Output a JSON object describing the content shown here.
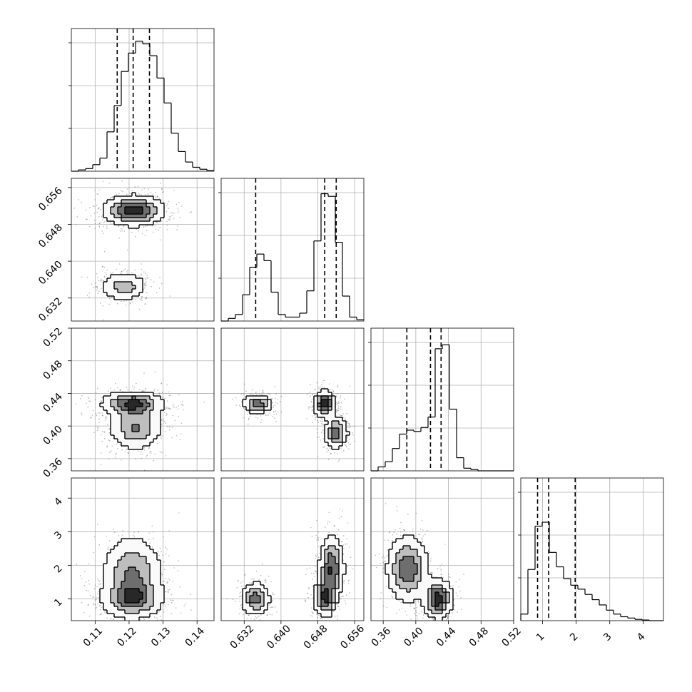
{
  "chart_data": {
    "type": "corner",
    "grid": true,
    "params": [
      {
        "range": [
          0.103,
          0.145
        ],
        "ticks": [
          "0.11",
          "0.12",
          "0.13",
          "0.14"
        ],
        "tick_values": [
          0.11,
          0.12,
          0.13,
          0.14
        ],
        "quantiles": [
          0.1165,
          0.1212,
          0.126
        ],
        "modes": [
          {
            "mu": 0.1215,
            "sigma": 0.0045,
            "w": 1
          }
        ],
        "histogram": [
          0,
          0.01,
          0.02,
          0.05,
          0.1,
          0.3,
          0.5,
          0.76,
          0.9,
          0.99,
          0.97,
          0.88,
          0.71,
          0.52,
          0.29,
          0.15,
          0.07,
          0.03,
          0.015,
          0.005
        ]
      },
      {
        "range": [
          0.627,
          0.658
        ],
        "ticks": [
          "0.632",
          "0.640",
          "0.648",
          "0.656"
        ],
        "tick_values": [
          0.632,
          0.64,
          0.648,
          0.656
        ],
        "quantiles": [
          0.6345,
          0.6495,
          0.652
        ],
        "modes": [
          {
            "mu": 0.6345,
            "sigma": 0.0016,
            "w": 0.33
          },
          {
            "mu": 0.651,
            "sigma": 0.0017,
            "w": 0.67
          }
        ],
        "histogram": [
          0,
          0.02,
          0.05,
          0.2,
          0.41,
          0.51,
          0.46,
          0.22,
          0.05,
          0.03,
          0.03,
          0.06,
          0.23,
          0.61,
          0.97,
          0.95,
          0.6,
          0.19,
          0.03,
          0.01
        ]
      },
      {
        "range": [
          0.345,
          0.52
        ],
        "ticks": [
          "0.36",
          "0.40",
          "0.44",
          "0.48",
          "0.52"
        ],
        "tick_values": [
          0.36,
          0.4,
          0.44,
          0.48,
          0.52
        ],
        "quantiles": [
          0.389,
          0.418,
          0.431
        ],
        "modes": [
          {
            "mu": 0.427,
            "sigma": 0.008,
            "w": 0.6
          },
          {
            "mu": 0.395,
            "sigma": 0.015,
            "w": 0.4
          }
        ],
        "histogram": [
          0,
          0.03,
          0.07,
          0.17,
          0.28,
          0.31,
          0.3,
          0.33,
          0.41,
          0.93,
          0.96,
          0.47,
          0.1,
          0.02,
          0.01,
          0,
          0,
          0,
          0,
          0
        ]
      },
      {
        "range": [
          0.35,
          4.6
        ],
        "ticks": [
          "1",
          "2",
          "3",
          "4"
        ],
        "tick_values": [
          1,
          2,
          3,
          4
        ],
        "quantiles": [
          0.85,
          1.18,
          1.97
        ],
        "modes": [
          {
            "mu": 1.0,
            "sigma": 0.25,
            "w": 0.55
          },
          {
            "mu": 1.8,
            "sigma": 0.55,
            "w": 0.45
          }
        ],
        "histogram": [
          0.05,
          0.39,
          0.72,
          0.75,
          0.52,
          0.41,
          0.32,
          0.27,
          0.24,
          0.2,
          0.16,
          0.12,
          0.08,
          0.05,
          0.03,
          0.02,
          0.01,
          0.005,
          0,
          0
        ]
      }
    ],
    "density_peaks": {
      "1-0": [
        {
          "x": 0.1215,
          "y": 0.651,
          "sx": 0.0045,
          "sy": 0.0017,
          "w": 0.67
        },
        {
          "x": 0.1185,
          "y": 0.6345,
          "sx": 0.0035,
          "sy": 0.0016,
          "w": 0.33
        }
      ],
      "2-0": [
        {
          "x": 0.121,
          "y": 0.427,
          "sx": 0.0045,
          "sy": 0.008,
          "w": 0.6
        },
        {
          "x": 0.122,
          "y": 0.398,
          "sx": 0.004,
          "sy": 0.014,
          "w": 0.4
        }
      ],
      "3-0": [
        {
          "x": 0.121,
          "y": 1.0,
          "sx": 0.0045,
          "sy": 0.3,
          "w": 0.55
        },
        {
          "x": 0.121,
          "y": 1.8,
          "sx": 0.0045,
          "sy": 0.55,
          "w": 0.45
        }
      ],
      "2-1": [
        {
          "x": 0.635,
          "y": 0.427,
          "sx": 0.0016,
          "sy": 0.006,
          "w": 0.3
        },
        {
          "x": 0.6495,
          "y": 0.427,
          "sx": 0.0012,
          "sy": 0.008,
          "w": 0.4
        },
        {
          "x": 0.652,
          "y": 0.392,
          "sx": 0.0013,
          "sy": 0.01,
          "w": 0.3
        }
      ],
      "3-1": [
        {
          "x": 0.6345,
          "y": 1.0,
          "sx": 0.0016,
          "sy": 0.25,
          "w": 0.3
        },
        {
          "x": 0.6495,
          "y": 1.05,
          "sx": 0.0012,
          "sy": 0.3,
          "w": 0.35
        },
        {
          "x": 0.651,
          "y": 1.9,
          "sx": 0.0014,
          "sy": 0.5,
          "w": 0.35
        }
      ],
      "3-2": [
        {
          "x": 0.427,
          "y": 1.0,
          "sx": 0.009,
          "sy": 0.3,
          "w": 0.55
        },
        {
          "x": 0.39,
          "y": 1.9,
          "sx": 0.013,
          "sy": 0.5,
          "w": 0.45
        }
      ]
    }
  }
}
